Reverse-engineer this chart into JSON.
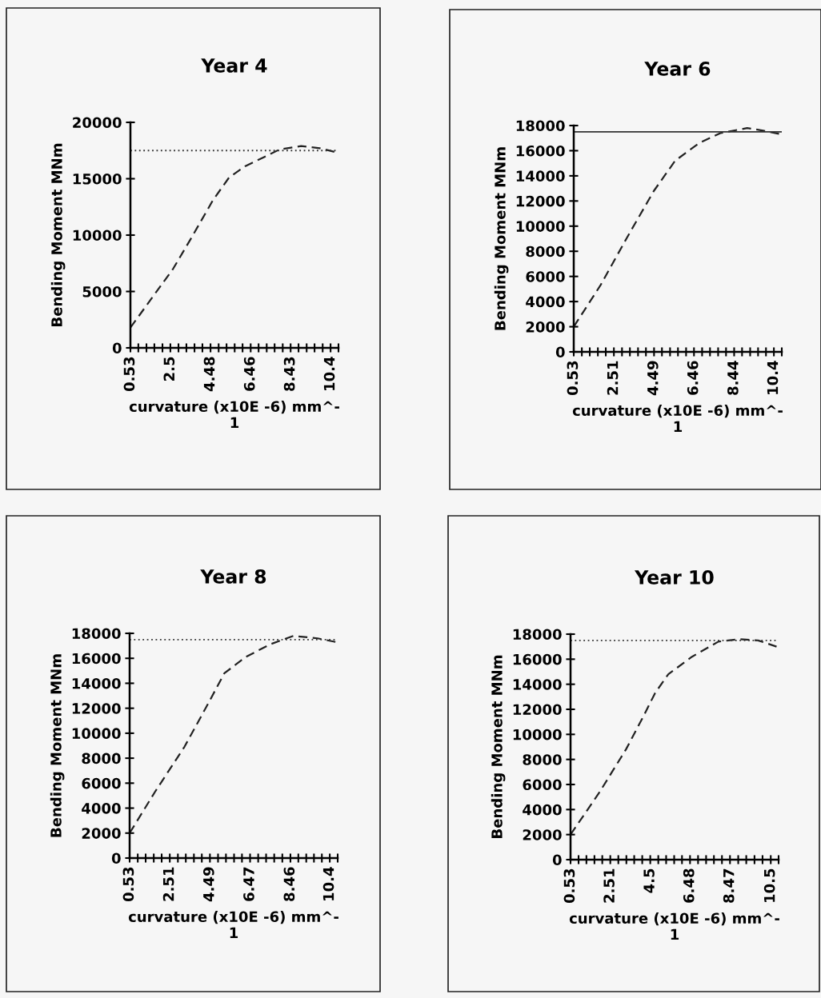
{
  "chart_data": [
    {
      "type": "line",
      "title": "Year 4",
      "xlabel": "curvature (x10E -6) mm^-\n1",
      "ylabel": "Bending Moment MNm",
      "xlim": [
        0.53,
        10.79
      ],
      "ylim": [
        0,
        20000
      ],
      "yticks": [
        0,
        5000,
        10000,
        15000,
        20000
      ],
      "xticks": [
        0.53,
        {
          "value": 0.92,
          "label": null
        },
        {
          "value": 1.32,
          "label": null
        },
        {
          "value": 1.71,
          "label": null
        },
        {
          "value": 2.11,
          "label": null
        },
        2.5,
        {
          "value": 2.9,
          "label": null
        },
        {
          "value": 3.29,
          "label": null
        },
        {
          "value": 3.69,
          "label": null
        },
        {
          "value": 4.08,
          "label": null
        },
        4.48,
        {
          "value": 4.88,
          "label": null
        },
        {
          "value": 5.27,
          "label": null
        },
        {
          "value": 5.67,
          "label": null
        },
        {
          "value": 6.06,
          "label": null
        },
        6.46,
        {
          "value": 6.85,
          "label": null
        },
        {
          "value": 7.25,
          "label": null
        },
        {
          "value": 7.64,
          "label": null
        },
        {
          "value": 8.04,
          "label": null
        },
        8.43,
        {
          "value": 8.82,
          "label": null
        },
        {
          "value": 9.22,
          "label": null
        },
        {
          "value": 9.61,
          "label": null
        },
        {
          "value": 10.01,
          "label": null
        },
        10.4,
        {
          "value": 10.79,
          "label": null
        }
      ],
      "series": [
        {
          "color": "#222222",
          "line_style": "dashed",
          "x": [
            0.53,
            1.58,
            2.63,
            3.55,
            4.6,
            5.39,
            6.18,
            7.1,
            7.89,
            8.95,
            9.87,
            10.79
          ],
          "values": [
            1800,
            4400,
            7000,
            9800,
            13100,
            15100,
            16100,
            16900,
            17600,
            17900,
            17700,
            17300
          ]
        }
      ],
      "ref_lines": [
        {
          "axis": "y",
          "value": 17500,
          "line_style": "dotted",
          "color": "#333333"
        }
      ],
      "grid": false,
      "legend": false,
      "marker": "none"
    },
    {
      "type": "line",
      "title": "Year 6",
      "xlabel": "curvature (x10E -6) mm^-\n1",
      "ylabel": "Bending Moment MNm",
      "xlim": [
        0.53,
        10.79
      ],
      "ylim": [
        0,
        18000
      ],
      "yticks": [
        0,
        2000,
        4000,
        6000,
        8000,
        10000,
        12000,
        14000,
        16000,
        18000
      ],
      "xticks": [
        0.53,
        {
          "value": 0.93,
          "label": null
        },
        {
          "value": 1.32,
          "label": null
        },
        {
          "value": 1.72,
          "label": null
        },
        {
          "value": 2.11,
          "label": null
        },
        2.51,
        {
          "value": 2.91,
          "label": null
        },
        {
          "value": 3.3,
          "label": null
        },
        {
          "value": 3.7,
          "label": null
        },
        {
          "value": 4.09,
          "label": null
        },
        4.49,
        {
          "value": 4.88,
          "label": null
        },
        {
          "value": 5.28,
          "label": null
        },
        {
          "value": 5.67,
          "label": null
        },
        {
          "value": 6.07,
          "label": null
        },
        6.46,
        {
          "value": 6.86,
          "label": null
        },
        {
          "value": 7.25,
          "label": null
        },
        {
          "value": 7.65,
          "label": null
        },
        {
          "value": 8.04,
          "label": null
        },
        8.44,
        {
          "value": 8.83,
          "label": null
        },
        {
          "value": 9.23,
          "label": null
        },
        {
          "value": 9.62,
          "label": null
        },
        {
          "value": 10.01,
          "label": null
        },
        10.4,
        {
          "value": 10.79,
          "label": null
        }
      ],
      "series": [
        {
          "color": "#222222",
          "line_style": "dashed",
          "x": [
            0.53,
            1.85,
            3.16,
            4.48,
            5.53,
            6.71,
            7.76,
            9.08,
            9.87,
            10.79
          ],
          "values": [
            2000,
            5300,
            9100,
            12800,
            15200,
            16600,
            17400,
            17800,
            17600,
            17300
          ]
        }
      ],
      "ref_lines": [
        {
          "axis": "y",
          "value": 17500,
          "line_style": "solid",
          "color": "#333333"
        }
      ],
      "grid": false,
      "legend": false,
      "marker": "none"
    },
    {
      "type": "line",
      "title": "Year 8",
      "xlabel": "curvature (x10E -6) mm^-\n1",
      "ylabel": "Bending Moment MNm",
      "xlim": [
        0.53,
        10.79
      ],
      "ylim": [
        0,
        18000
      ],
      "yticks": [
        0,
        2000,
        4000,
        6000,
        8000,
        10000,
        12000,
        14000,
        16000,
        18000
      ],
      "xticks": [
        0.53,
        {
          "value": 0.93,
          "label": null
        },
        {
          "value": 1.32,
          "label": null
        },
        {
          "value": 1.72,
          "label": null
        },
        {
          "value": 2.11,
          "label": null
        },
        2.51,
        {
          "value": 2.91,
          "label": null
        },
        {
          "value": 3.3,
          "label": null
        },
        {
          "value": 3.7,
          "label": null
        },
        {
          "value": 4.09,
          "label": null
        },
        4.49,
        {
          "value": 4.89,
          "label": null
        },
        {
          "value": 5.28,
          "label": null
        },
        {
          "value": 5.68,
          "label": null
        },
        {
          "value": 6.07,
          "label": null
        },
        6.47,
        {
          "value": 6.87,
          "label": null
        },
        {
          "value": 7.26,
          "label": null
        },
        {
          "value": 7.66,
          "label": null
        },
        {
          "value": 8.06,
          "label": null
        },
        8.46,
        {
          "value": 8.85,
          "label": null
        },
        {
          "value": 9.24,
          "label": null
        },
        {
          "value": 9.62,
          "label": null
        },
        {
          "value": 10.01,
          "label": null
        },
        10.4,
        {
          "value": 10.79,
          "label": null
        }
      ],
      "series": [
        {
          "color": "#222222",
          "line_style": "dashed",
          "x": [
            0.53,
            1.78,
            3.23,
            4.41,
            5.2,
            6.25,
            7.43,
            8.61,
            9.8,
            10.72
          ],
          "values": [
            2000,
            5300,
            8900,
            12400,
            14800,
            16100,
            17100,
            17800,
            17600,
            17300
          ]
        }
      ],
      "ref_lines": [
        {
          "axis": "y",
          "value": 17500,
          "line_style": "dotted",
          "color": "#333333"
        }
      ],
      "grid": false,
      "legend": false,
      "marker": "none"
    },
    {
      "type": "line",
      "title": "Year 10",
      "xlabel": "curvature (x10E -6) mm^-\n1",
      "ylabel": "Bending Moment MNm",
      "xlim": [
        0.53,
        10.89
      ],
      "ylim": [
        0,
        18000
      ],
      "yticks": [
        0,
        2000,
        4000,
        6000,
        8000,
        10000,
        12000,
        14000,
        16000,
        18000
      ],
      "xticks": [
        0.53,
        {
          "value": 0.93,
          "label": null
        },
        {
          "value": 1.32,
          "label": null
        },
        {
          "value": 1.72,
          "label": null
        },
        {
          "value": 2.11,
          "label": null
        },
        2.51,
        {
          "value": 2.91,
          "label": null
        },
        {
          "value": 3.31,
          "label": null
        },
        {
          "value": 3.7,
          "label": null
        },
        {
          "value": 4.1,
          "label": null
        },
        4.5,
        {
          "value": 4.9,
          "label": null
        },
        {
          "value": 5.29,
          "label": null
        },
        {
          "value": 5.69,
          "label": null
        },
        {
          "value": 6.08,
          "label": null
        },
        6.48,
        {
          "value": 6.88,
          "label": null
        },
        {
          "value": 7.28,
          "label": null
        },
        {
          "value": 7.67,
          "label": null
        },
        {
          "value": 8.07,
          "label": null
        },
        8.47,
        {
          "value": 8.88,
          "label": null
        },
        {
          "value": 9.28,
          "label": null
        },
        {
          "value": 9.69,
          "label": null
        },
        {
          "value": 10.09,
          "label": null
        },
        10.5,
        {
          "value": 10.89,
          "label": null
        }
      ],
      "series": [
        {
          "color": "#222222",
          "line_style": "dashed",
          "x": [
            0.53,
            1.98,
            3.29,
            4.21,
            4.74,
            5.4,
            6.58,
            7.89,
            8.95,
            9.87,
            10.79
          ],
          "values": [
            2000,
            5400,
            8800,
            11600,
            13300,
            14800,
            16200,
            17400,
            17600,
            17500,
            17000
          ]
        }
      ],
      "ref_lines": [
        {
          "axis": "y",
          "value": 17500,
          "line_style": "dotted",
          "color": "#333333"
        }
      ],
      "grid": false,
      "legend": false,
      "marker": "none"
    }
  ]
}
